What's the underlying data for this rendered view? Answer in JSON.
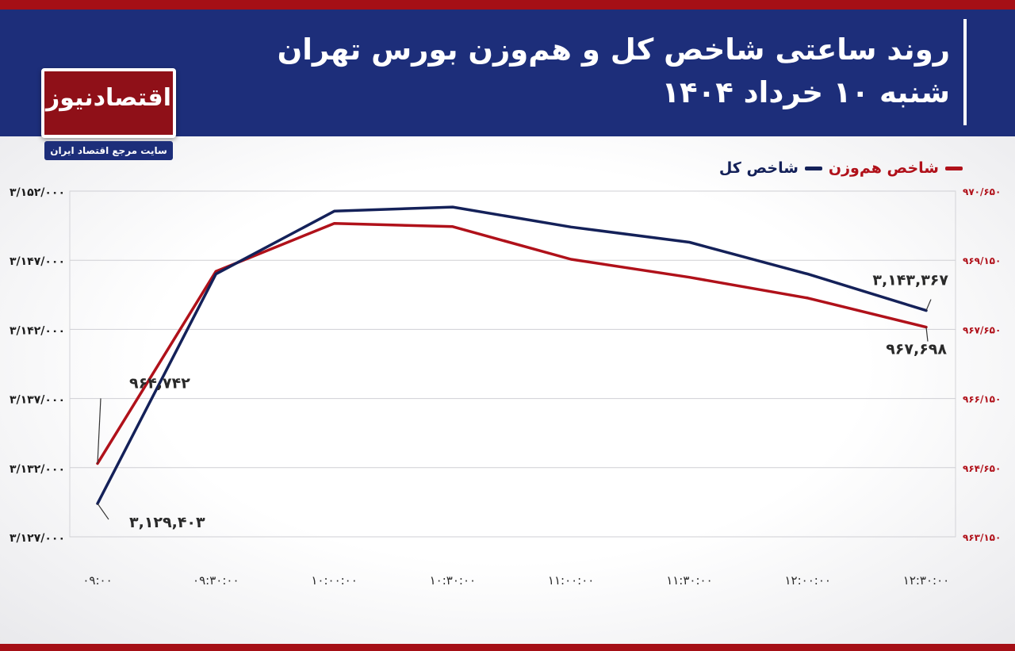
{
  "header": {
    "title_line1": "روند ساعتی شاخص کل و هم‌وزن بورس تهران",
    "title_line2": "شنبه ۱۰ خرداد ۱۴۰۴"
  },
  "brand": {
    "logo_text": "اقتصادنیوز",
    "tagline": "سایت مرجع اقتصاد ایران"
  },
  "colors": {
    "header_bg": "#1d2e7a",
    "accent_red": "#a50f16",
    "series_main": "#142159",
    "series_equal": "#b0111a"
  },
  "chart_data": {
    "type": "line",
    "title": "روند ساعتی شاخص کل و هم‌وزن بورس تهران",
    "subtitle": "شنبه ۱۰ خرداد ۱۴۰۴",
    "x": [
      "09:00",
      "09:30:00",
      "10:00:00",
      "10:30:00",
      "11:00:00",
      "11:30:00",
      "12:00:00",
      "12:30:00"
    ],
    "y_left": {
      "min": 3127000,
      "max": 3152000,
      "ticks": [
        3127000,
        3132000,
        3137000,
        3142000,
        3147000,
        3152000
      ],
      "tick_labels": [
        "۳/۱۲۷/۰۰۰",
        "۳/۱۳۲/۰۰۰",
        "۳/۱۳۷/۰۰۰",
        "۳/۱۴۲/۰۰۰",
        "۳/۱۴۷/۰۰۰",
        "۳/۱۵۲/۰۰۰"
      ]
    },
    "y_right": {
      "min": 963150,
      "max": 970650,
      "ticks": [
        963150,
        964650,
        966150,
        967650,
        969150,
        970650
      ],
      "tick_labels": [
        "۹۶۳/۱۵۰",
        "۹۶۴/۶۵۰",
        "۹۶۶/۱۵۰",
        "۹۶۷/۶۵۰",
        "۹۶۹/۱۵۰",
        "۹۷۰/۶۵۰"
      ]
    },
    "x_tick_labels": [
      "۰۹:۰۰",
      "۰۹:۳۰:۰۰",
      "۱۰:۰۰:۰۰",
      "۱۰:۳۰:۰۰",
      "۱۱:۰۰:۰۰",
      "۱۱:۳۰:۰۰",
      "۱۲:۰۰:۰۰",
      "۱۲:۳۰:۰۰"
    ],
    "grid": true,
    "legend_position": "top-right",
    "series": [
      {
        "name": "شاخص کل",
        "axis": "left",
        "color": "#142159",
        "values": [
          3129403,
          3146000,
          3150550,
          3150850,
          3149400,
          3148300,
          3146000,
          3143367
        ]
      },
      {
        "name": "شاخص هم‌وزن",
        "axis": "right",
        "color": "#b0111a",
        "values": [
          964742,
          968910,
          969950,
          969880,
          969170,
          968780,
          968330,
          967698
        ]
      }
    ],
    "annotations": [
      {
        "text": "۳,۱۲۹,۴۰۳",
        "series": 0,
        "index": 0
      },
      {
        "text": "۳,۱۴۳,۳۶۷",
        "series": 0,
        "index": 7
      },
      {
        "text": "۹۶۴,۷۴۲",
        "series": 1,
        "index": 0
      },
      {
        "text": "۹۶۷,۶۹۸",
        "series": 1,
        "index": 7
      }
    ]
  }
}
